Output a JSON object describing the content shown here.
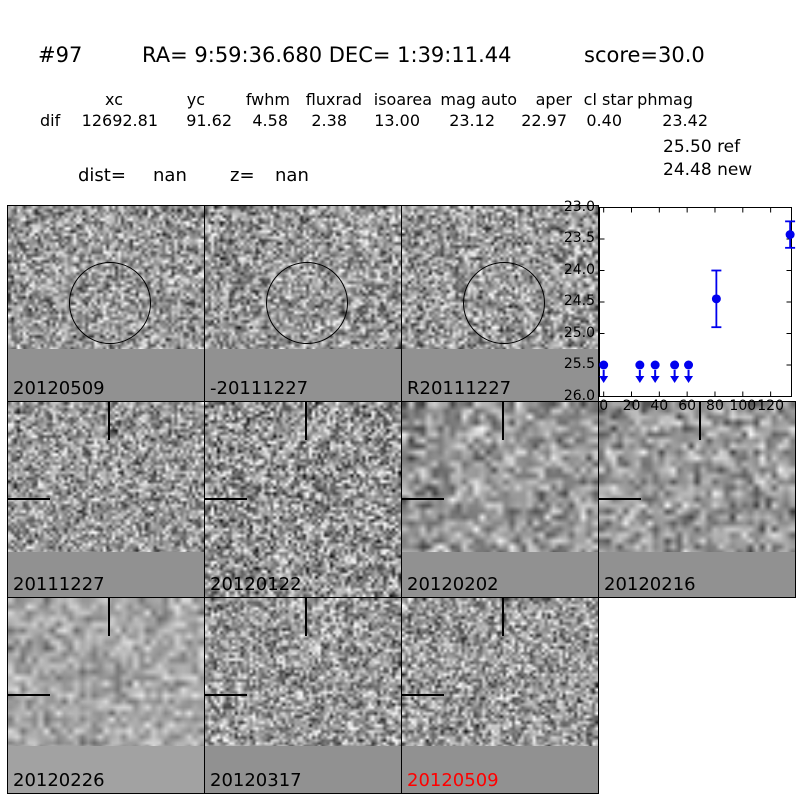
{
  "header": {
    "id": "#97",
    "coords": "RA= 9:59:36.680 DEC= 1:39:11.44",
    "score": "score=30.0"
  },
  "table": {
    "headers": [
      "xc",
      "yc",
      "fwhm",
      "fluxrad",
      "isoarea",
      "mag auto",
      "aper",
      "cl star",
      "phmag"
    ],
    "row_label": "dif",
    "values": [
      "12692.81",
      "91.62",
      "4.58",
      "2.38",
      "13.00",
      "23.12",
      "22.97",
      "0.40",
      "23.42"
    ],
    "ref_line": "25.50 ref",
    "new_line": "24.48 new"
  },
  "info": {
    "dist_label": "dist=",
    "dist_value": "nan",
    "z_label": "z=",
    "z_value": "nan"
  },
  "colors": {
    "border": "#000000",
    "band": "#919191",
    "band_light": "#a2a2a2",
    "marker_blue": "#0000ee",
    "label_black": "#000000",
    "label_red": "#ff0000",
    "plot_bg": "#ffffff"
  },
  "textures": {
    "crisp": {
      "cell": 3,
      "mean": 0.6,
      "sd": 0.3
    },
    "crisp2": {
      "cell": 3,
      "mean": 0.58,
      "sd": 0.34
    },
    "smooth": {
      "cell": 6,
      "mean": 0.6,
      "sd": 0.22
    },
    "smoothlight": {
      "cell": 6,
      "mean": 0.66,
      "sd": 0.16
    }
  },
  "panels": [
    {
      "row": 0,
      "col": 0,
      "label": "20120509",
      "overlay": "circle",
      "band": 52,
      "band_color": "band",
      "texture": "crisp",
      "seed": 11,
      "label_color": "label_black"
    },
    {
      "row": 0,
      "col": 1,
      "label": "-20111227",
      "overlay": "circle",
      "band": 52,
      "band_color": "band",
      "texture": "crisp",
      "seed": 22,
      "label_color": "label_black"
    },
    {
      "row": 0,
      "col": 2,
      "label": "R20111227",
      "overlay": "circle",
      "band": 52,
      "band_color": "band",
      "texture": "crisp",
      "seed": 33,
      "label_color": "label_black"
    },
    {
      "row": 1,
      "col": 0,
      "label": "20111227",
      "overlay": "cross",
      "band": 45,
      "band_color": "band",
      "texture": "crisp",
      "seed": 44,
      "label_color": "label_black"
    },
    {
      "row": 1,
      "col": 1,
      "label": "20120122",
      "overlay": "cross",
      "band": 0,
      "band_color": "band",
      "texture": "crisp2",
      "seed": 55,
      "label_color": "label_black"
    },
    {
      "row": 1,
      "col": 2,
      "label": "20120202",
      "overlay": "cross",
      "band": 45,
      "band_color": "band",
      "texture": "smooth",
      "seed": 66,
      "label_color": "label_black"
    },
    {
      "row": 1,
      "col": 3,
      "label": "20120216",
      "overlay": "cross",
      "band": 45,
      "band_color": "band",
      "texture": "smooth",
      "seed": 77,
      "label_color": "label_black"
    },
    {
      "row": 2,
      "col": 0,
      "label": "20120226",
      "overlay": "cross",
      "band": 47,
      "band_color": "band_light",
      "texture": "smoothlight",
      "seed": 88,
      "label_color": "label_black"
    },
    {
      "row": 2,
      "col": 1,
      "label": "20120317",
      "overlay": "cross",
      "band": 47,
      "band_color": "band",
      "texture": "crisp",
      "seed": 99,
      "label_color": "label_black"
    },
    {
      "row": 2,
      "col": 2,
      "label": "20120509",
      "overlay": "cross",
      "band": 47,
      "band_color": "band",
      "texture": "crisp",
      "seed": 123,
      "label_color": "label_red"
    }
  ],
  "chart_data": {
    "type": "scatter",
    "title": "",
    "xlabel": "",
    "ylabel": "",
    "x_ticks": [
      0,
      20,
      40,
      60,
      80,
      100,
      120
    ],
    "y_ticks": [
      23.0,
      23.5,
      24.0,
      24.5,
      25.0,
      25.5,
      26.0
    ],
    "x_tick_labels": [
      "0",
      "20",
      "40",
      "60",
      "80",
      "100",
      "120"
    ],
    "y_tick_labels": [
      "23.0",
      "23.5",
      "24.0",
      "24.5",
      "25.0",
      "25.5",
      "26.0"
    ],
    "xlim": [
      -3,
      135
    ],
    "ylim": [
      26.0,
      23.0
    ],
    "y_axis_inverted": true,
    "grid": false,
    "legend": false,
    "series": [
      {
        "name": "upper-limits",
        "marker": "circle-down-arrow",
        "points": [
          {
            "x": 0,
            "y": 25.5
          },
          {
            "x": 26,
            "y": 25.5
          },
          {
            "x": 37,
            "y": 25.5
          },
          {
            "x": 51,
            "y": 25.5
          },
          {
            "x": 61,
            "y": 25.5
          }
        ]
      },
      {
        "name": "detections",
        "marker": "circle-errorbar",
        "points": [
          {
            "x": 81,
            "y": 24.45,
            "yerr": 0.45
          },
          {
            "x": 134,
            "y": 23.43,
            "yerr": 0.21
          }
        ]
      }
    ]
  }
}
